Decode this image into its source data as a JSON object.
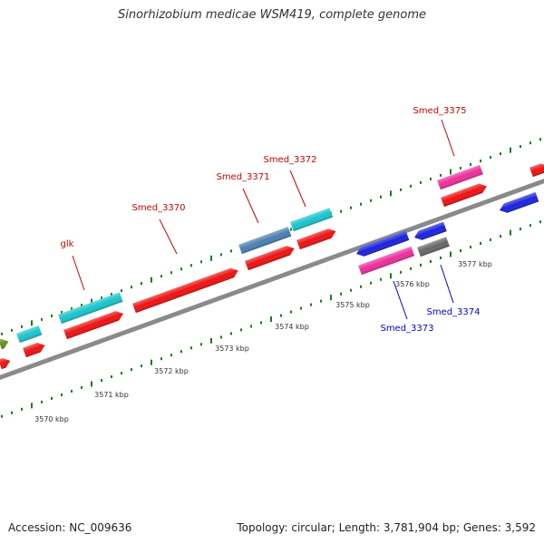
{
  "title": "Sinorhizobium medicae WSM419, complete genome",
  "footer": {
    "accession": "Accession: NC_009636",
    "summary": "Topology: circular; Length: 3,781,904 bp; Genes: 3,592"
  },
  "colors": {
    "backbone": "#8a8a8a",
    "tick": "#1e7a1e",
    "forward_label": "#cc0000",
    "reverse_label": "#0000cc",
    "red": "#ee1111",
    "cyan": "#19c4cc",
    "steelblue": "#4a7fb0",
    "pink": "#ee2d9c",
    "blue": "#1a22dd",
    "gray": "#666666",
    "olive": "#6a8c1e"
  },
  "kbp_labels": [
    "3570 kbp",
    "3571 kbp",
    "3572 kbp",
    "3573 kbp",
    "3574 kbp",
    "3575 kbp",
    "3576 kbp",
    "3577 kbp"
  ],
  "gene_labels": [
    {
      "text": "glk",
      "strand": "forward"
    },
    {
      "text": "Smed_3370",
      "strand": "forward"
    },
    {
      "text": "Smed_3371",
      "strand": "forward"
    },
    {
      "text": "Smed_3372",
      "strand": "forward"
    },
    {
      "text": "Smed_3375",
      "strand": "forward"
    },
    {
      "text": "Smed_3373",
      "strand": "reverse"
    },
    {
      "text": "Smed_3374",
      "strand": "reverse"
    }
  ]
}
